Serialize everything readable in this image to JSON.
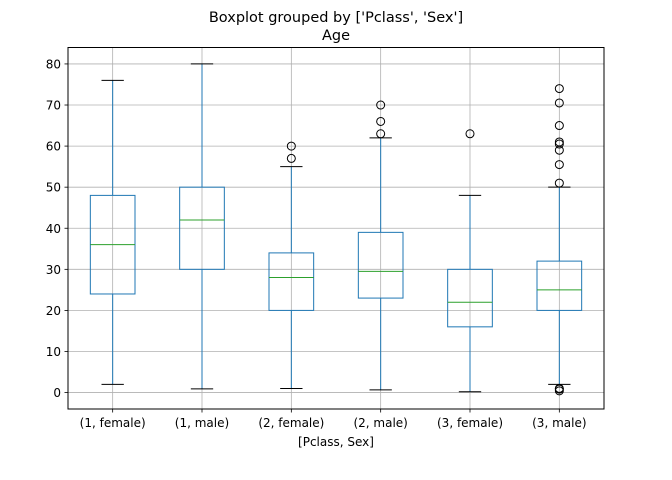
{
  "chart_data": {
    "type": "box",
    "suptitle": "Boxplot grouped by ['Pclass', 'Sex']",
    "title": "Age",
    "xlabel": "[Pclass, Sex]",
    "ylabel": "",
    "categories": [
      "(1, female)",
      "(1, male)",
      "(2, female)",
      "(2, male)",
      "(3, female)",
      "(3, male)"
    ],
    "yticks": [
      0,
      10,
      20,
      30,
      40,
      50,
      60,
      70,
      80
    ],
    "ylim": [
      -4,
      84
    ],
    "grid": true,
    "colors": {
      "box": "#1f77b4",
      "median": "#2ca02c",
      "whisker_cap": "#000000",
      "grid": "#b0b0b0",
      "flier": "#000000"
    },
    "boxes": [
      {
        "category": "(1, female)",
        "whislo": 2,
        "q1": 24,
        "med": 36,
        "q3": 48,
        "whishi": 76,
        "fliers": []
      },
      {
        "category": "(1, male)",
        "whislo": 0.9,
        "q1": 30,
        "med": 42,
        "q3": 50,
        "whishi": 80,
        "fliers": []
      },
      {
        "category": "(2, female)",
        "whislo": 1,
        "q1": 20,
        "med": 28,
        "q3": 34,
        "whishi": 55,
        "fliers": [
          57,
          60
        ]
      },
      {
        "category": "(2, male)",
        "whislo": 0.67,
        "q1": 23,
        "med": 29.5,
        "q3": 39,
        "whishi": 62,
        "fliers": [
          63,
          66,
          70
        ]
      },
      {
        "category": "(3, female)",
        "whislo": 0.2,
        "q1": 16,
        "med": 22,
        "q3": 30,
        "whishi": 48,
        "fliers": [
          63
        ]
      },
      {
        "category": "(3, male)",
        "whislo": 2,
        "q1": 20,
        "med": 25,
        "q3": 32,
        "whishi": 50,
        "fliers": [
          0.42,
          0.83,
          1,
          51,
          55.5,
          59,
          60.5,
          61,
          65,
          70.5,
          74
        ]
      }
    ]
  }
}
